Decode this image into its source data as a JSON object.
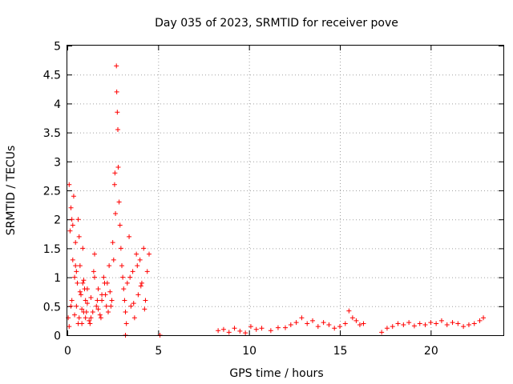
{
  "chart_data": {
    "type": "scatter",
    "title": "Day 035 of 2023, SRMTID for receiver pove",
    "xlabel": "GPS time / hours",
    "ylabel": "SRMTID / TECUs",
    "xlim": [
      0,
      24
    ],
    "ylim": [
      0,
      5
    ],
    "xticks": [
      "0",
      "5",
      "10",
      "15",
      "20"
    ],
    "yticks": [
      "0",
      "0.5",
      "1",
      "1.5",
      "2",
      "2.5",
      "3",
      "3.5",
      "4",
      "4.5",
      "5"
    ],
    "grid": true,
    "marker": "+",
    "color": "#ff0000",
    "series": [
      {
        "x": [
          0.05,
          0.1,
          0.15,
          0.2,
          0.25,
          0.3,
          0.35,
          0.4,
          0.45,
          0.5,
          0.55,
          0.6,
          0.65,
          0.7,
          0.75,
          0.8,
          0.85,
          0.9,
          0.95,
          1.0,
          0.1,
          0.2,
          0.3,
          0.4,
          0.5,
          0.6,
          0.7,
          0.8,
          0.9,
          1.0,
          1.1,
          1.2,
          1.3,
          1.4,
          1.5,
          1.6,
          1.7,
          1.8,
          1.9,
          2.0,
          2.1,
          2.2,
          2.3,
          2.4,
          2.5,
          2.6,
          2.62,
          2.65,
          2.7,
          2.72,
          2.75,
          2.78,
          2.8,
          2.85,
          2.9,
          2.95,
          3.0,
          3.05,
          3.1,
          3.15,
          3.2,
          3.3,
          3.4,
          3.5,
          3.6,
          3.7,
          3.8,
          3.9,
          4.0,
          4.1,
          4.2,
          4.3,
          4.4,
          4.5,
          3.25,
          3.45,
          3.65,
          3.85,
          4.05,
          4.25,
          1.1,
          1.3,
          1.5,
          1.7,
          1.9,
          2.05,
          2.25,
          2.45,
          0.25,
          0.45,
          0.65,
          0.85,
          1.05,
          1.25,
          1.45,
          1.65,
          1.85,
          2.15,
          2.35,
          2.55,
          3.2,
          5.1,
          8.3,
          8.6,
          8.9,
          9.2,
          9.5,
          9.8,
          10.1,
          10.4,
          10.7,
          12.0,
          12.3,
          12.6,
          12.9,
          13.2,
          13.5,
          13.8,
          14.1,
          14.4,
          14.7,
          15.0,
          15.3,
          15.5,
          15.7,
          15.9,
          16.1,
          17.3,
          17.6,
          17.9,
          18.2,
          18.5,
          18.8,
          19.1,
          19.4,
          19.7,
          20.0,
          20.3,
          20.6,
          20.9,
          21.2,
          21.5,
          21.8,
          22.1,
          22.4,
          22.7,
          22.9,
          11.2,
          11.6,
          16.3
        ],
        "y": [
          0.3,
          2.6,
          1.8,
          2.2,
          0.6,
          1.3,
          2.4,
          1.0,
          1.6,
          0.5,
          0.9,
          2.0,
          0.3,
          1.2,
          0.7,
          0.2,
          1.5,
          0.4,
          0.8,
          0.6,
          0.15,
          0.5,
          1.9,
          0.35,
          1.1,
          0.2,
          0.75,
          0.45,
          0.95,
          0.3,
          0.55,
          0.25,
          0.65,
          0.4,
          1.4,
          0.5,
          0.8,
          0.35,
          0.6,
          1.0,
          0.7,
          0.9,
          1.2,
          0.5,
          1.6,
          2.6,
          2.8,
          2.1,
          4.65,
          4.2,
          3.85,
          3.55,
          2.9,
          2.3,
          1.9,
          1.5,
          1.2,
          1.0,
          0.8,
          0.6,
          0.4,
          0.9,
          1.7,
          0.5,
          1.1,
          0.3,
          1.4,
          0.7,
          1.3,
          0.9,
          1.5,
          0.6,
          1.1,
          1.4,
          0.2,
          1.0,
          0.55,
          1.2,
          0.85,
          0.45,
          0.8,
          0.3,
          1.0,
          0.45,
          0.7,
          0.9,
          0.4,
          0.6,
          2.0,
          1.2,
          1.7,
          0.9,
          0.4,
          0.2,
          1.1,
          0.6,
          0.3,
          0.5,
          0.75,
          1.3,
          0.0,
          0.0,
          0.08,
          0.1,
          0.05,
          0.12,
          0.07,
          0.04,
          0.15,
          0.1,
          0.12,
          0.13,
          0.18,
          0.22,
          0.3,
          0.2,
          0.25,
          0.15,
          0.22,
          0.18,
          0.12,
          0.15,
          0.2,
          0.42,
          0.3,
          0.25,
          0.18,
          0.05,
          0.12,
          0.15,
          0.2,
          0.18,
          0.22,
          0.16,
          0.2,
          0.18,
          0.22,
          0.2,
          0.25,
          0.18,
          0.22,
          0.2,
          0.15,
          0.18,
          0.2,
          0.25,
          0.3,
          0.08,
          0.13,
          0.2
        ]
      }
    ]
  }
}
